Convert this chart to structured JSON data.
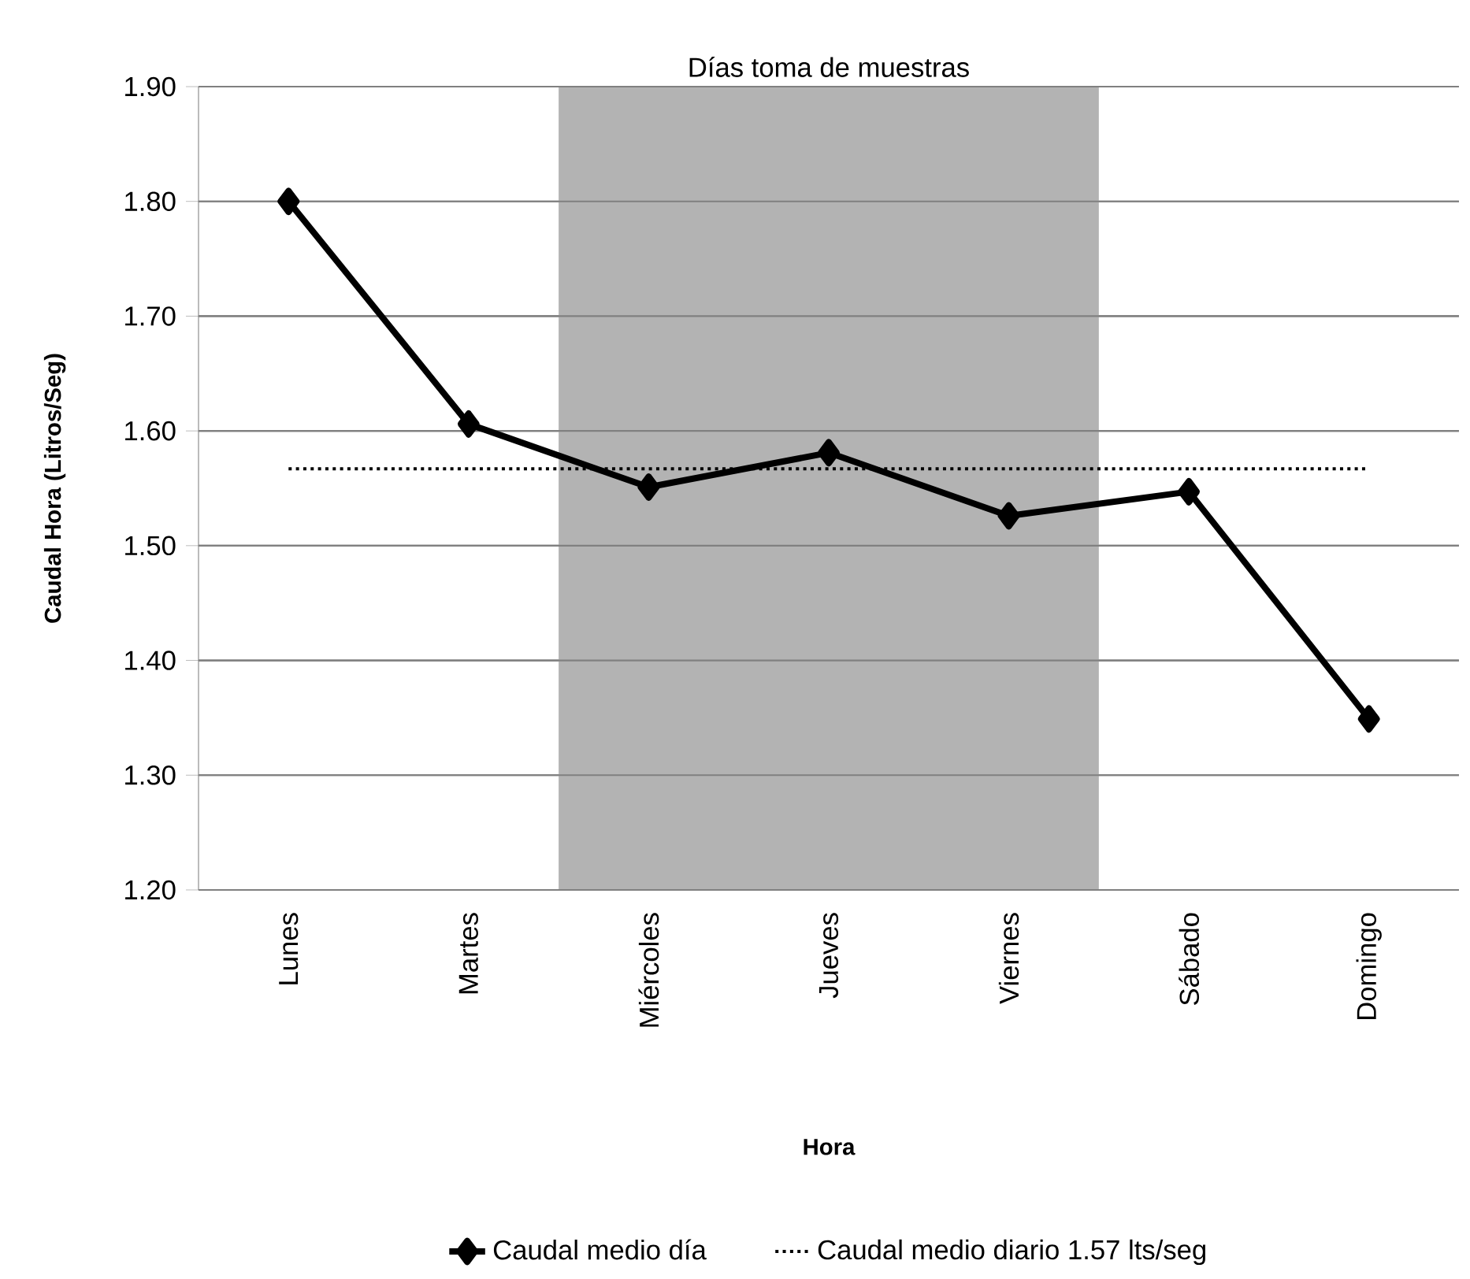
{
  "chart_data": {
    "type": "line",
    "xlabel": "Hora",
    "ylabel": "Caudal Hora (Litros/Seg)",
    "categories": [
      "Lunes",
      "Martes",
      "Miércoles",
      "Jueves",
      "Viernes",
      "Sábado",
      "Domingo"
    ],
    "series": [
      {
        "name": "Caudal  medio día",
        "color": "#000000",
        "values": [
          1.8,
          1.606,
          1.551,
          1.581,
          1.526,
          1.547,
          1.349
        ]
      }
    ],
    "ylim": [
      1.2,
      1.9
    ],
    "yticks": [
      {
        "value": 1.2,
        "label": "1.20"
      },
      {
        "value": 1.3,
        "label": "1.30"
      },
      {
        "value": 1.4,
        "label": "1.40"
      },
      {
        "value": 1.5,
        "label": "1.50"
      },
      {
        "value": 1.6,
        "label": "1.60"
      },
      {
        "value": 1.7,
        "label": "1.70"
      },
      {
        "value": 1.8,
        "label": "1.80"
      },
      {
        "value": 1.9,
        "label": "1.90"
      }
    ],
    "ref_lines": [
      {
        "axis": "y",
        "value": 1.567,
        "label": "Caudal medio diario 1.57 lts/seg",
        "color": "#000000",
        "line_style": "dotted"
      }
    ],
    "bands": [
      {
        "axis": "x",
        "from": "Miércoles",
        "to": "Viernes",
        "label": "Días toma de muestras",
        "color": "#b3b3b3"
      }
    ],
    "grid": "y",
    "legend": "bottom",
    "marker": "diamond",
    "line_style": "solid"
  }
}
